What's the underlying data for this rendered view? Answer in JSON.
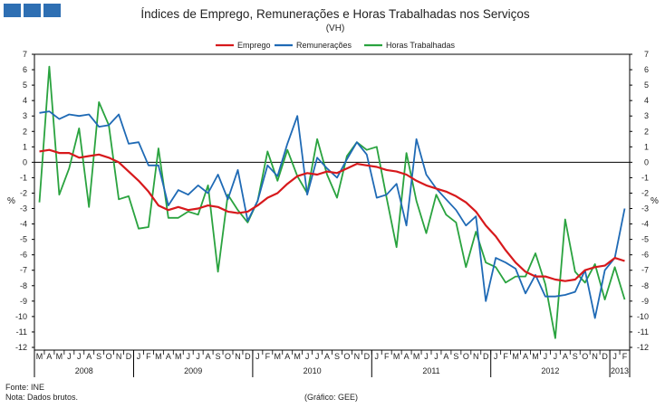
{
  "header": {
    "brand_colors": [
      "#2e6fb3"
    ]
  },
  "footer": {
    "source": "Fonte: INE",
    "note": "Nota: Dados brutos.",
    "graph_credit": "(Gráfico: GEE)"
  },
  "chart_data": {
    "type": "line",
    "title": "Índices de Emprego, Remunerações e Horas Trabalhadas  nos Serviços",
    "subtitle": "(VH)",
    "ylabel": "%",
    "ylabel_right": "%",
    "ylim": [
      -12,
      7
    ],
    "yticks": [
      7,
      6,
      5,
      4,
      3,
      2,
      1,
      0,
      -1,
      -2,
      -3,
      -4,
      -5,
      -6,
      -7,
      -8,
      -9,
      -10,
      -11,
      -12
    ],
    "grid": false,
    "legend_placement": "top-center",
    "months": [
      "M",
      "A",
      "M",
      "J",
      "J",
      "A",
      "S",
      "O",
      "N",
      "D",
      "J",
      "F",
      "M",
      "A",
      "M",
      "J",
      "J",
      "A",
      "S",
      "O",
      "N",
      "D",
      "J",
      "F",
      "M",
      "A",
      "M",
      "J",
      "J",
      "A",
      "S",
      "O",
      "N",
      "D",
      "J",
      "F",
      "M",
      "A",
      "M",
      "J",
      "J",
      "A",
      "S",
      "O",
      "N",
      "D",
      "J",
      "F",
      "M",
      "A",
      "M",
      "J",
      "J",
      "A",
      "S",
      "O",
      "N",
      "D",
      "J",
      "F"
    ],
    "years": [
      {
        "label": "2008",
        "start": 0,
        "end": 9
      },
      {
        "label": "2009",
        "start": 10,
        "end": 21
      },
      {
        "label": "2010",
        "start": 22,
        "end": 33
      },
      {
        "label": "2011",
        "start": 34,
        "end": 45
      },
      {
        "label": "2012",
        "start": 46,
        "end": 57
      },
      {
        "label": "2013",
        "start": 58,
        "end": 59
      }
    ],
    "series": [
      {
        "name": "Emprego",
        "color": "#d7191c",
        "values": [
          0.7,
          0.8,
          0.6,
          0.6,
          0.3,
          0.4,
          0.5,
          0.3,
          0.0,
          -0.6,
          -1.2,
          -1.9,
          -2.8,
          -3.1,
          -2.9,
          -3.1,
          -3.0,
          -2.8,
          -2.9,
          -3.2,
          -3.3,
          -3.2,
          -2.8,
          -2.3,
          -2.0,
          -1.4,
          -0.9,
          -0.7,
          -0.8,
          -0.6,
          -0.7,
          -0.4,
          -0.1,
          -0.2,
          -0.3,
          -0.5,
          -0.6,
          -0.8,
          -1.2,
          -1.5,
          -1.7,
          -1.9,
          -2.2,
          -2.6,
          -3.2,
          -4.1,
          -4.8,
          -5.7,
          -6.5,
          -7.1,
          -7.4,
          -7.4,
          -7.6,
          -7.7,
          -7.6,
          -7.0,
          -6.8,
          -6.7,
          -6.2,
          -6.4
        ]
      },
      {
        "name": "Remunerações",
        "color": "#1f6ab5",
        "values": [
          3.2,
          3.3,
          2.8,
          3.1,
          3.0,
          3.1,
          2.3,
          2.4,
          3.1,
          1.2,
          1.3,
          -0.2,
          -0.2,
          -2.8,
          -1.8,
          -2.1,
          -1.5,
          -2.0,
          -0.8,
          -2.4,
          -0.5,
          -3.8,
          -2.5,
          -0.2,
          -0.9,
          1.2,
          3.0,
          -2.1,
          0.3,
          -0.4,
          -1.0,
          0.2,
          1.3,
          0.5,
          -2.3,
          -2.1,
          -1.4,
          -4.1,
          1.5,
          -0.8,
          -1.7,
          -2.4,
          -3.1,
          -4.1,
          -3.5,
          -9.0,
          -6.2,
          -6.5,
          -6.9,
          -8.5,
          -7.3,
          -8.7,
          -8.7,
          -8.6,
          -8.4,
          -7.0,
          -10.1,
          -7.0,
          -6.2,
          -3.0
        ]
      },
      {
        "name": "Horas Trabalhadas",
        "color": "#2aa33f",
        "values": [
          -2.6,
          6.2,
          -2.1,
          -0.4,
          2.2,
          -2.9,
          3.9,
          2.4,
          -2.4,
          -2.2,
          -4.3,
          -4.2,
          0.9,
          -3.6,
          -3.6,
          -3.2,
          -3.4,
          -1.5,
          -7.1,
          -2.1,
          -3.1,
          -3.9,
          -2.5,
          0.7,
          -1.2,
          0.8,
          -0.9,
          -2.0,
          1.5,
          -0.8,
          -2.3,
          0.4,
          1.3,
          0.8,
          1.0,
          -2.3,
          -5.5,
          0.6,
          -2.5,
          -4.6,
          -2.1,
          -3.4,
          -3.9,
          -6.8,
          -4.5,
          -6.5,
          -6.8,
          -7.8,
          -7.4,
          -7.4,
          -5.9,
          -7.9,
          -11.4,
          -3.7,
          -7.1,
          -7.8,
          -6.6,
          -8.9,
          -6.8,
          -8.9
        ]
      }
    ]
  }
}
